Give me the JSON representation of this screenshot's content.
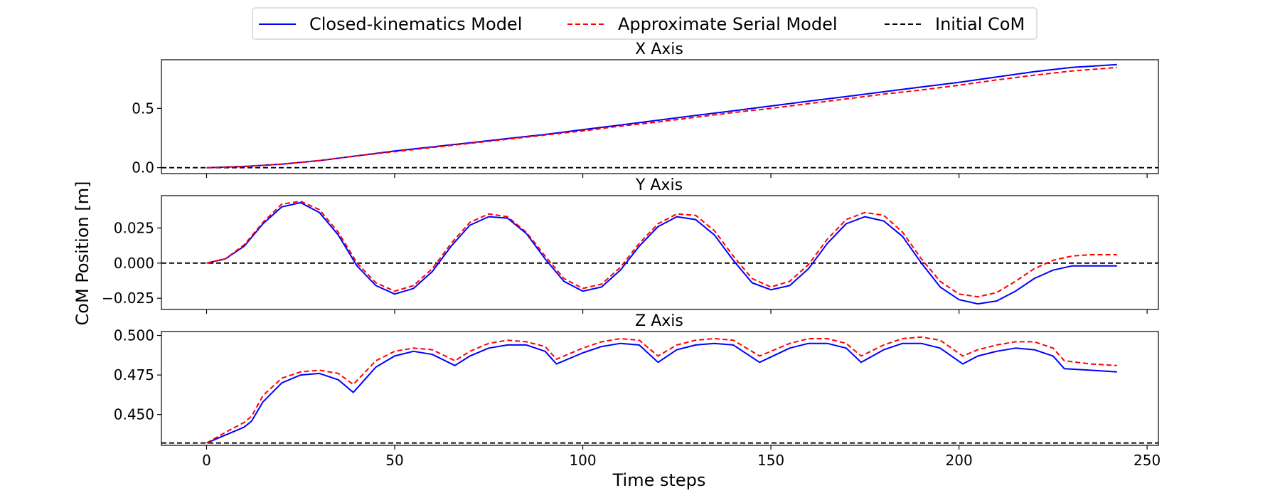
{
  "legend": {
    "entries": [
      {
        "label": "Closed-kinematics Model",
        "color": "#0000ff",
        "dash": "solid"
      },
      {
        "label": "Approximate Serial Model",
        "color": "#ff0000",
        "dash": "dashed"
      },
      {
        "label": "Initial CoM",
        "color": "#000000",
        "dash": "dashed"
      }
    ],
    "placement": "top-center"
  },
  "figure": {
    "ylabel": "CoM Position [m]",
    "xlabel": "Time steps"
  },
  "chart_data": [
    {
      "type": "line",
      "title": "X Axis",
      "xlim": [
        -12,
        253
      ],
      "ylim": [
        -0.05,
        0.91
      ],
      "yticks": [
        0.0,
        0.5
      ],
      "ytick_labels": [
        "0.0",
        "0.5"
      ],
      "xticks": [
        0,
        50,
        100,
        150,
        200,
        250
      ],
      "show_xtick_labels": false,
      "initial_com": 0.0,
      "series": [
        {
          "name": "Closed-kinematics Model",
          "color": "#0000ff",
          "dash": "solid",
          "x": [
            0,
            10,
            20,
            30,
            40,
            50,
            60,
            70,
            80,
            90,
            100,
            110,
            120,
            130,
            140,
            150,
            160,
            170,
            180,
            190,
            200,
            210,
            220,
            230,
            242
          ],
          "y": [
            0.0,
            0.01,
            0.03,
            0.06,
            0.1,
            0.14,
            0.175,
            0.21,
            0.245,
            0.28,
            0.32,
            0.36,
            0.4,
            0.44,
            0.48,
            0.52,
            0.56,
            0.6,
            0.64,
            0.68,
            0.72,
            0.765,
            0.81,
            0.845,
            0.87
          ]
        },
        {
          "name": "Approximate Serial Model",
          "color": "#ff0000",
          "dash": "dashed",
          "x": [
            0,
            10,
            20,
            30,
            40,
            50,
            60,
            70,
            80,
            90,
            100,
            110,
            120,
            130,
            140,
            150,
            160,
            170,
            180,
            190,
            200,
            210,
            220,
            230,
            242
          ],
          "y": [
            0.0,
            0.01,
            0.03,
            0.06,
            0.1,
            0.135,
            0.17,
            0.205,
            0.24,
            0.275,
            0.31,
            0.35,
            0.385,
            0.425,
            0.465,
            0.5,
            0.54,
            0.58,
            0.62,
            0.655,
            0.695,
            0.74,
            0.78,
            0.815,
            0.845
          ]
        }
      ]
    },
    {
      "type": "line",
      "title": "Y Axis",
      "xlim": [
        -12,
        253
      ],
      "ylim": [
        -0.033,
        0.048
      ],
      "yticks": [
        -0.025,
        0.0,
        0.025
      ],
      "ytick_labels": [
        "−0.025",
        "0.000",
        "0.025"
      ],
      "xticks": [
        0,
        50,
        100,
        150,
        200,
        250
      ],
      "show_xtick_labels": false,
      "initial_com": 0.0,
      "series": [
        {
          "name": "Closed-kinematics Model",
          "color": "#0000ff",
          "dash": "solid",
          "x": [
            0,
            5,
            10,
            15,
            20,
            25,
            30,
            35,
            40,
            45,
            50,
            55,
            60,
            65,
            70,
            75,
            80,
            85,
            90,
            95,
            100,
            105,
            110,
            115,
            120,
            125,
            130,
            135,
            140,
            145,
            150,
            155,
            160,
            165,
            170,
            175,
            180,
            185,
            190,
            195,
            200,
            205,
            210,
            215,
            220,
            225,
            230,
            235,
            242
          ],
          "y": [
            0.0,
            0.003,
            0.012,
            0.028,
            0.04,
            0.043,
            0.036,
            0.02,
            -0.002,
            -0.016,
            -0.022,
            -0.018,
            -0.006,
            0.012,
            0.027,
            0.033,
            0.032,
            0.021,
            0.003,
            -0.013,
            -0.02,
            -0.017,
            -0.005,
            0.012,
            0.026,
            0.033,
            0.031,
            0.02,
            0.002,
            -0.014,
            -0.019,
            -0.016,
            -0.004,
            0.014,
            0.028,
            0.033,
            0.03,
            0.019,
            0.0,
            -0.017,
            -0.026,
            -0.029,
            -0.027,
            -0.02,
            -0.011,
            -0.005,
            -0.002,
            -0.002,
            -0.002
          ]
        },
        {
          "name": "Approximate Serial Model",
          "color": "#ff0000",
          "dash": "dashed",
          "x": [
            0,
            5,
            10,
            15,
            20,
            25,
            30,
            35,
            40,
            45,
            50,
            55,
            60,
            65,
            70,
            75,
            80,
            85,
            90,
            95,
            100,
            105,
            110,
            115,
            120,
            125,
            130,
            135,
            140,
            145,
            150,
            155,
            160,
            165,
            170,
            175,
            180,
            185,
            190,
            195,
            200,
            205,
            210,
            215,
            220,
            225,
            230,
            235,
            242
          ],
          "y": [
            0.0,
            0.003,
            0.013,
            0.029,
            0.042,
            0.044,
            0.038,
            0.022,
            0.0,
            -0.014,
            -0.02,
            -0.016,
            -0.004,
            0.014,
            0.029,
            0.035,
            0.033,
            0.022,
            0.005,
            -0.011,
            -0.018,
            -0.015,
            -0.003,
            0.014,
            0.028,
            0.035,
            0.034,
            0.023,
            0.005,
            -0.011,
            -0.017,
            -0.013,
            -0.001,
            0.017,
            0.031,
            0.036,
            0.034,
            0.022,
            0.003,
            -0.013,
            -0.022,
            -0.024,
            -0.021,
            -0.013,
            -0.004,
            0.002,
            0.005,
            0.006,
            0.006
          ]
        }
      ]
    },
    {
      "type": "line",
      "title": "Z Axis",
      "xlim": [
        -12,
        253
      ],
      "ylim": [
        0.4305,
        0.5025
      ],
      "yticks": [
        0.45,
        0.475,
        0.5
      ],
      "ytick_labels": [
        "0.450",
        "0.475",
        "0.500"
      ],
      "xticks": [
        0,
        50,
        100,
        150,
        200,
        250
      ],
      "xtick_labels": [
        "0",
        "50",
        "100",
        "150",
        "200",
        "250"
      ],
      "show_xtick_labels": true,
      "initial_com": 0.432,
      "series": [
        {
          "name": "Closed-kinematics Model",
          "color": "#0000ff",
          "dash": "solid",
          "x": [
            0,
            6,
            10,
            12,
            15,
            20,
            25,
            30,
            35,
            39,
            45,
            50,
            55,
            60,
            66,
            70,
            75,
            80,
            85,
            90,
            93,
            100,
            105,
            110,
            115,
            120,
            125,
            130,
            135,
            140,
            147,
            155,
            160,
            165,
            170,
            174,
            180,
            185,
            190,
            195,
            201,
            205,
            210,
            215,
            220,
            225,
            228,
            235,
            242
          ],
          "y": [
            0.432,
            0.438,
            0.442,
            0.446,
            0.458,
            0.47,
            0.475,
            0.476,
            0.472,
            0.464,
            0.48,
            0.487,
            0.49,
            0.488,
            0.481,
            0.487,
            0.492,
            0.494,
            0.494,
            0.49,
            0.482,
            0.489,
            0.493,
            0.495,
            0.494,
            0.483,
            0.491,
            0.494,
            0.495,
            0.494,
            0.483,
            0.492,
            0.495,
            0.495,
            0.492,
            0.483,
            0.491,
            0.495,
            0.495,
            0.492,
            0.482,
            0.487,
            0.49,
            0.492,
            0.491,
            0.487,
            0.479,
            0.478,
            0.477
          ]
        },
        {
          "name": "Approximate Serial Model",
          "color": "#ff0000",
          "dash": "dashed",
          "x": [
            0,
            6,
            10,
            12,
            15,
            20,
            25,
            30,
            35,
            39,
            45,
            50,
            55,
            60,
            66,
            70,
            75,
            80,
            85,
            90,
            93,
            100,
            105,
            110,
            115,
            120,
            125,
            130,
            135,
            140,
            147,
            155,
            160,
            165,
            170,
            174,
            180,
            185,
            190,
            195,
            201,
            205,
            210,
            215,
            220,
            225,
            228,
            235,
            242
          ],
          "y": [
            0.432,
            0.44,
            0.445,
            0.449,
            0.462,
            0.473,
            0.477,
            0.478,
            0.476,
            0.469,
            0.484,
            0.49,
            0.492,
            0.491,
            0.484,
            0.49,
            0.495,
            0.497,
            0.496,
            0.493,
            0.485,
            0.492,
            0.496,
            0.498,
            0.497,
            0.487,
            0.494,
            0.497,
            0.498,
            0.497,
            0.487,
            0.495,
            0.498,
            0.498,
            0.495,
            0.487,
            0.494,
            0.498,
            0.499,
            0.497,
            0.487,
            0.491,
            0.494,
            0.496,
            0.496,
            0.492,
            0.484,
            0.482,
            0.481
          ]
        }
      ]
    }
  ]
}
